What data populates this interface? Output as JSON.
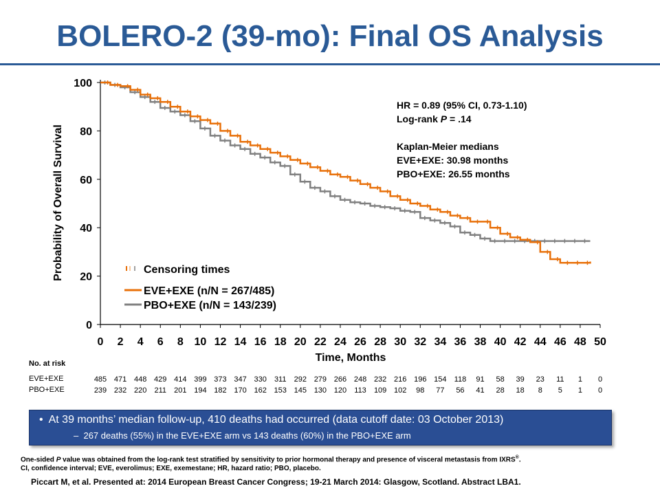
{
  "slide": {
    "title": "BOLERO-2 (39-mo): Final OS Analysis",
    "stats": {
      "hr_line": "HR = 0.89 (95% CI, 0.73-1.10)",
      "logrank_prefix": "Log-rank ",
      "logrank_p": "P",
      "logrank_suffix": " = .14",
      "medians_title": "Kaplan-Meier  medians",
      "median_eve": "EVE+EXE:  30.98  months",
      "median_pbo": "PBO+EXE:  26.55  months"
    },
    "at_risk_title": "No. at risk",
    "callout": {
      "bullet1": "At 39 months’ median follow-up, 410 deaths had occurred (data cutoff date: 03 October 2013)",
      "bullet2": "267 deaths (55%) in the EVE+EXE arm vs 143 deaths (60%) in the PBO+EXE arm"
    },
    "footnote": {
      "line1_a": "One-sided ",
      "line1_p": "P",
      "line1_b": " value was obtained from the log-rank test stratified by sensitivity to prior hormonal therapy and presence of visceral metastasis from IXRS",
      "line1_sup": "®",
      "line1_c": ".",
      "line2": "CI, confidence interval; EVE, everolimus; EXE, exemestane; HR, hazard ratio; PBO, placebo."
    },
    "citation": "Piccart M, et al. Presented at: 2014 European Breast Cancer Congress; 19-21 March 2014: Glasgow, Scotland. Abstract LBA1."
  },
  "chart_data": {
    "type": "line",
    "xlabel": "Time, Months",
    "ylabel": "Probability of Overall Survival",
    "xlim": [
      0,
      50
    ],
    "ylim": [
      0,
      100
    ],
    "x_ticks": [
      0,
      2,
      4,
      6,
      8,
      10,
      12,
      14,
      16,
      18,
      20,
      22,
      24,
      26,
      28,
      30,
      32,
      34,
      36,
      38,
      40,
      42,
      44,
      46,
      48,
      50
    ],
    "y_ticks": [
      0,
      20,
      40,
      60,
      80,
      100
    ],
    "legend": {
      "placement": "bottom-left",
      "censoring_label": "Censoring times",
      "entries": [
        "EVE+EXE (n/N = 267/485)",
        "PBO+EXE (n/N = 143/239)"
      ]
    },
    "series": [
      {
        "name": "EVE+EXE (n/N = 267/485)",
        "color": "#e8700a",
        "x": [
          0,
          1,
          2,
          3,
          4,
          5,
          6,
          7,
          8,
          9,
          10,
          11,
          12,
          13,
          14,
          15,
          16,
          17,
          18,
          19,
          20,
          21,
          22,
          23,
          24,
          25,
          26,
          27,
          28,
          29,
          30,
          31,
          32,
          33,
          34,
          35,
          36,
          37,
          38,
          39,
          40,
          41,
          42,
          43,
          44,
          45,
          46,
          47,
          48,
          49
        ],
        "y": [
          100,
          99,
          98.5,
          97,
          95,
          93.5,
          92,
          90,
          88,
          86,
          84.5,
          83,
          80,
          78,
          75.5,
          74,
          72.5,
          71,
          69.5,
          68,
          66.5,
          65,
          63.5,
          62,
          61,
          59.5,
          58,
          56.5,
          55,
          53,
          51.5,
          50,
          49,
          47.5,
          46.5,
          45,
          44,
          42.5,
          42.5,
          40,
          37.5,
          36,
          35,
          34,
          30,
          27,
          25.5,
          25.5,
          25.5,
          26
        ]
      },
      {
        "name": "PBO+EXE (n/N = 143/239)",
        "color": "#808080",
        "x": [
          0,
          1,
          2,
          3,
          4,
          5,
          6,
          7,
          8,
          9,
          10,
          11,
          12,
          13,
          14,
          15,
          16,
          17,
          18,
          19,
          20,
          21,
          22,
          23,
          24,
          25,
          26,
          27,
          28,
          29,
          30,
          31,
          32,
          33,
          34,
          35,
          36,
          37,
          38,
          39,
          40,
          41,
          42,
          43,
          44,
          45,
          46,
          47,
          48,
          49
        ],
        "y": [
          100,
          99,
          98,
          96,
          94,
          92,
          89.5,
          88,
          86.5,
          84,
          81,
          78,
          76,
          74,
          72.5,
          70.5,
          69,
          67,
          65.5,
          62,
          59,
          56.5,
          55,
          53,
          51.5,
          50.5,
          50,
          49,
          48.5,
          48,
          47,
          46.5,
          44,
          43,
          42,
          40.5,
          38,
          37,
          35.5,
          34.5,
          34.5,
          34.5,
          34.5,
          34.5,
          34.5,
          34.5,
          34.5,
          34.5,
          34.5,
          34.5
        ]
      }
    ],
    "at_risk": {
      "EVE+EXE": [
        485,
        471,
        448,
        429,
        414,
        399,
        373,
        347,
        330,
        311,
        292,
        279,
        266,
        248,
        232,
        216,
        196,
        154,
        118,
        91,
        58,
        39,
        23,
        11,
        1,
        0
      ],
      "PBO+EXE": [
        239,
        232,
        220,
        211,
        201,
        194,
        182,
        170,
        162,
        153,
        145,
        130,
        120,
        113,
        109,
        102,
        98,
        77,
        56,
        41,
        28,
        18,
        8,
        5,
        1,
        0
      ]
    }
  }
}
